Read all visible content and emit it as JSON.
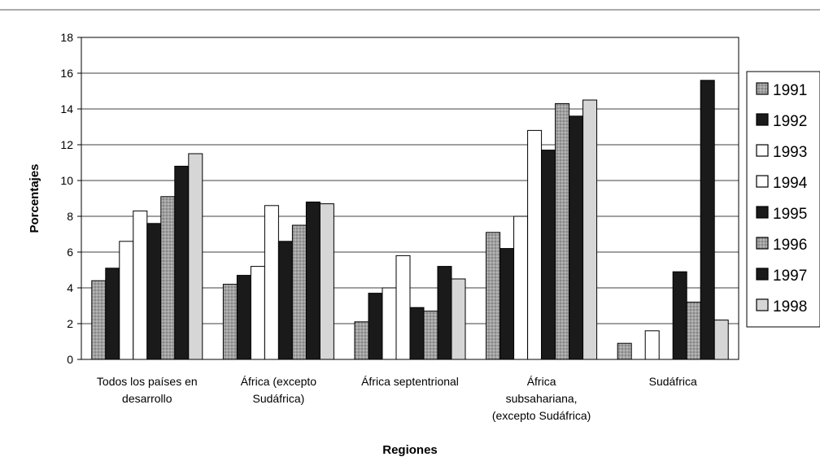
{
  "chart_data": {
    "type": "bar",
    "title": "",
    "xlabel": "Regiones",
    "ylabel": "Porcentajes",
    "ylim": [
      0,
      18
    ],
    "yticks": [
      0,
      2,
      4,
      6,
      8,
      10,
      12,
      14,
      16,
      18
    ],
    "grid": true,
    "legend_position": "right",
    "categories": [
      [
        "Todos los países en",
        "desarrollo"
      ],
      [
        "África (excepto",
        "Sudáfrica)"
      ],
      [
        "África septentrional"
      ],
      [
        "África",
        "subsahariana,",
        "(excepto Sudáfrica)"
      ],
      [
        "Sudáfrica"
      ]
    ],
    "series": [
      {
        "name": "1991",
        "color": "#9a9a9a",
        "pattern": "dots",
        "values": [
          4.4,
          4.2,
          2.1,
          7.1,
          0.9
        ]
      },
      {
        "name": "1992",
        "color": "#1a1a1a",
        "pattern": "solid",
        "values": [
          5.1,
          4.7,
          3.7,
          6.2,
          0
        ]
      },
      {
        "name": "1993",
        "color": "#ffffff",
        "pattern": "solid",
        "values": [
          6.6,
          5.2,
          4.0,
          8.0,
          1.6
        ]
      },
      {
        "name": "1994",
        "color": "#ffffff",
        "pattern": "solid",
        "values": [
          8.3,
          8.6,
          5.8,
          12.8,
          0
        ]
      },
      {
        "name": "1995",
        "color": "#1a1a1a",
        "pattern": "solid",
        "values": [
          7.6,
          6.6,
          2.9,
          11.7,
          4.9
        ]
      },
      {
        "name": "1996",
        "color": "#a8a8a8",
        "pattern": "dots",
        "values": [
          9.1,
          7.5,
          2.7,
          14.3,
          3.2
        ]
      },
      {
        "name": "1997",
        "color": "#1a1a1a",
        "pattern": "solid",
        "values": [
          10.8,
          8.8,
          5.2,
          13.6,
          15.6
        ]
      },
      {
        "name": "1998",
        "color": "#d6d6d6",
        "pattern": "solid",
        "values": [
          11.5,
          8.7,
          4.5,
          14.5,
          2.2
        ]
      }
    ]
  }
}
